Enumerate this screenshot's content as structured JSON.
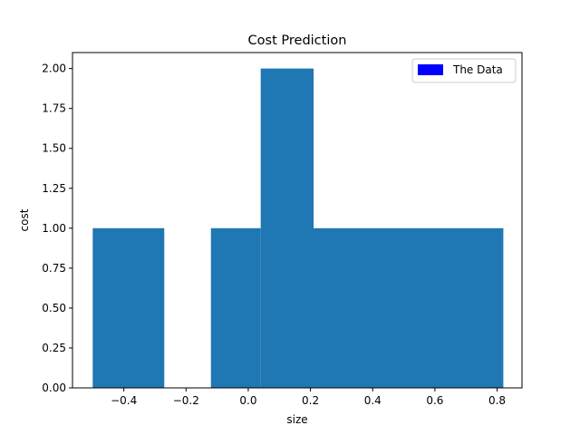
{
  "chart_data": {
    "type": "bar",
    "title": "Cost Prediction",
    "xlabel": "size",
    "ylabel": "cost",
    "xlim": [
      -0.565,
      0.88
    ],
    "ylim": [
      0,
      2.1
    ],
    "grid": false,
    "legend": {
      "placement": "top-right",
      "entries": [
        {
          "label": "The Data",
          "color": "#0000ff"
        }
      ]
    },
    "bars": [
      {
        "x0": -0.5,
        "x1": -0.27,
        "value": 1
      },
      {
        "x0": -0.12,
        "x1": 0.04,
        "value": 1
      },
      {
        "x0": 0.04,
        "x1": 0.21,
        "value": 2
      },
      {
        "x0": 0.21,
        "x1": 0.82,
        "value": 1
      }
    ],
    "bar_color": "#1f77b4",
    "xticks": [
      -0.4,
      -0.2,
      0.0,
      0.2,
      0.4,
      0.6,
      0.8
    ],
    "xtick_labels": [
      "−0.4",
      "−0.2",
      "0.0",
      "0.2",
      "0.4",
      "0.6",
      "0.8"
    ],
    "yticks": [
      0,
      0.25,
      0.5,
      0.75,
      1.0,
      1.25,
      1.5,
      1.75,
      2.0
    ],
    "ytick_labels": [
      "0.00",
      "0.25",
      "0.50",
      "0.75",
      "1.00",
      "1.25",
      "1.50",
      "1.75",
      "2.00"
    ]
  }
}
